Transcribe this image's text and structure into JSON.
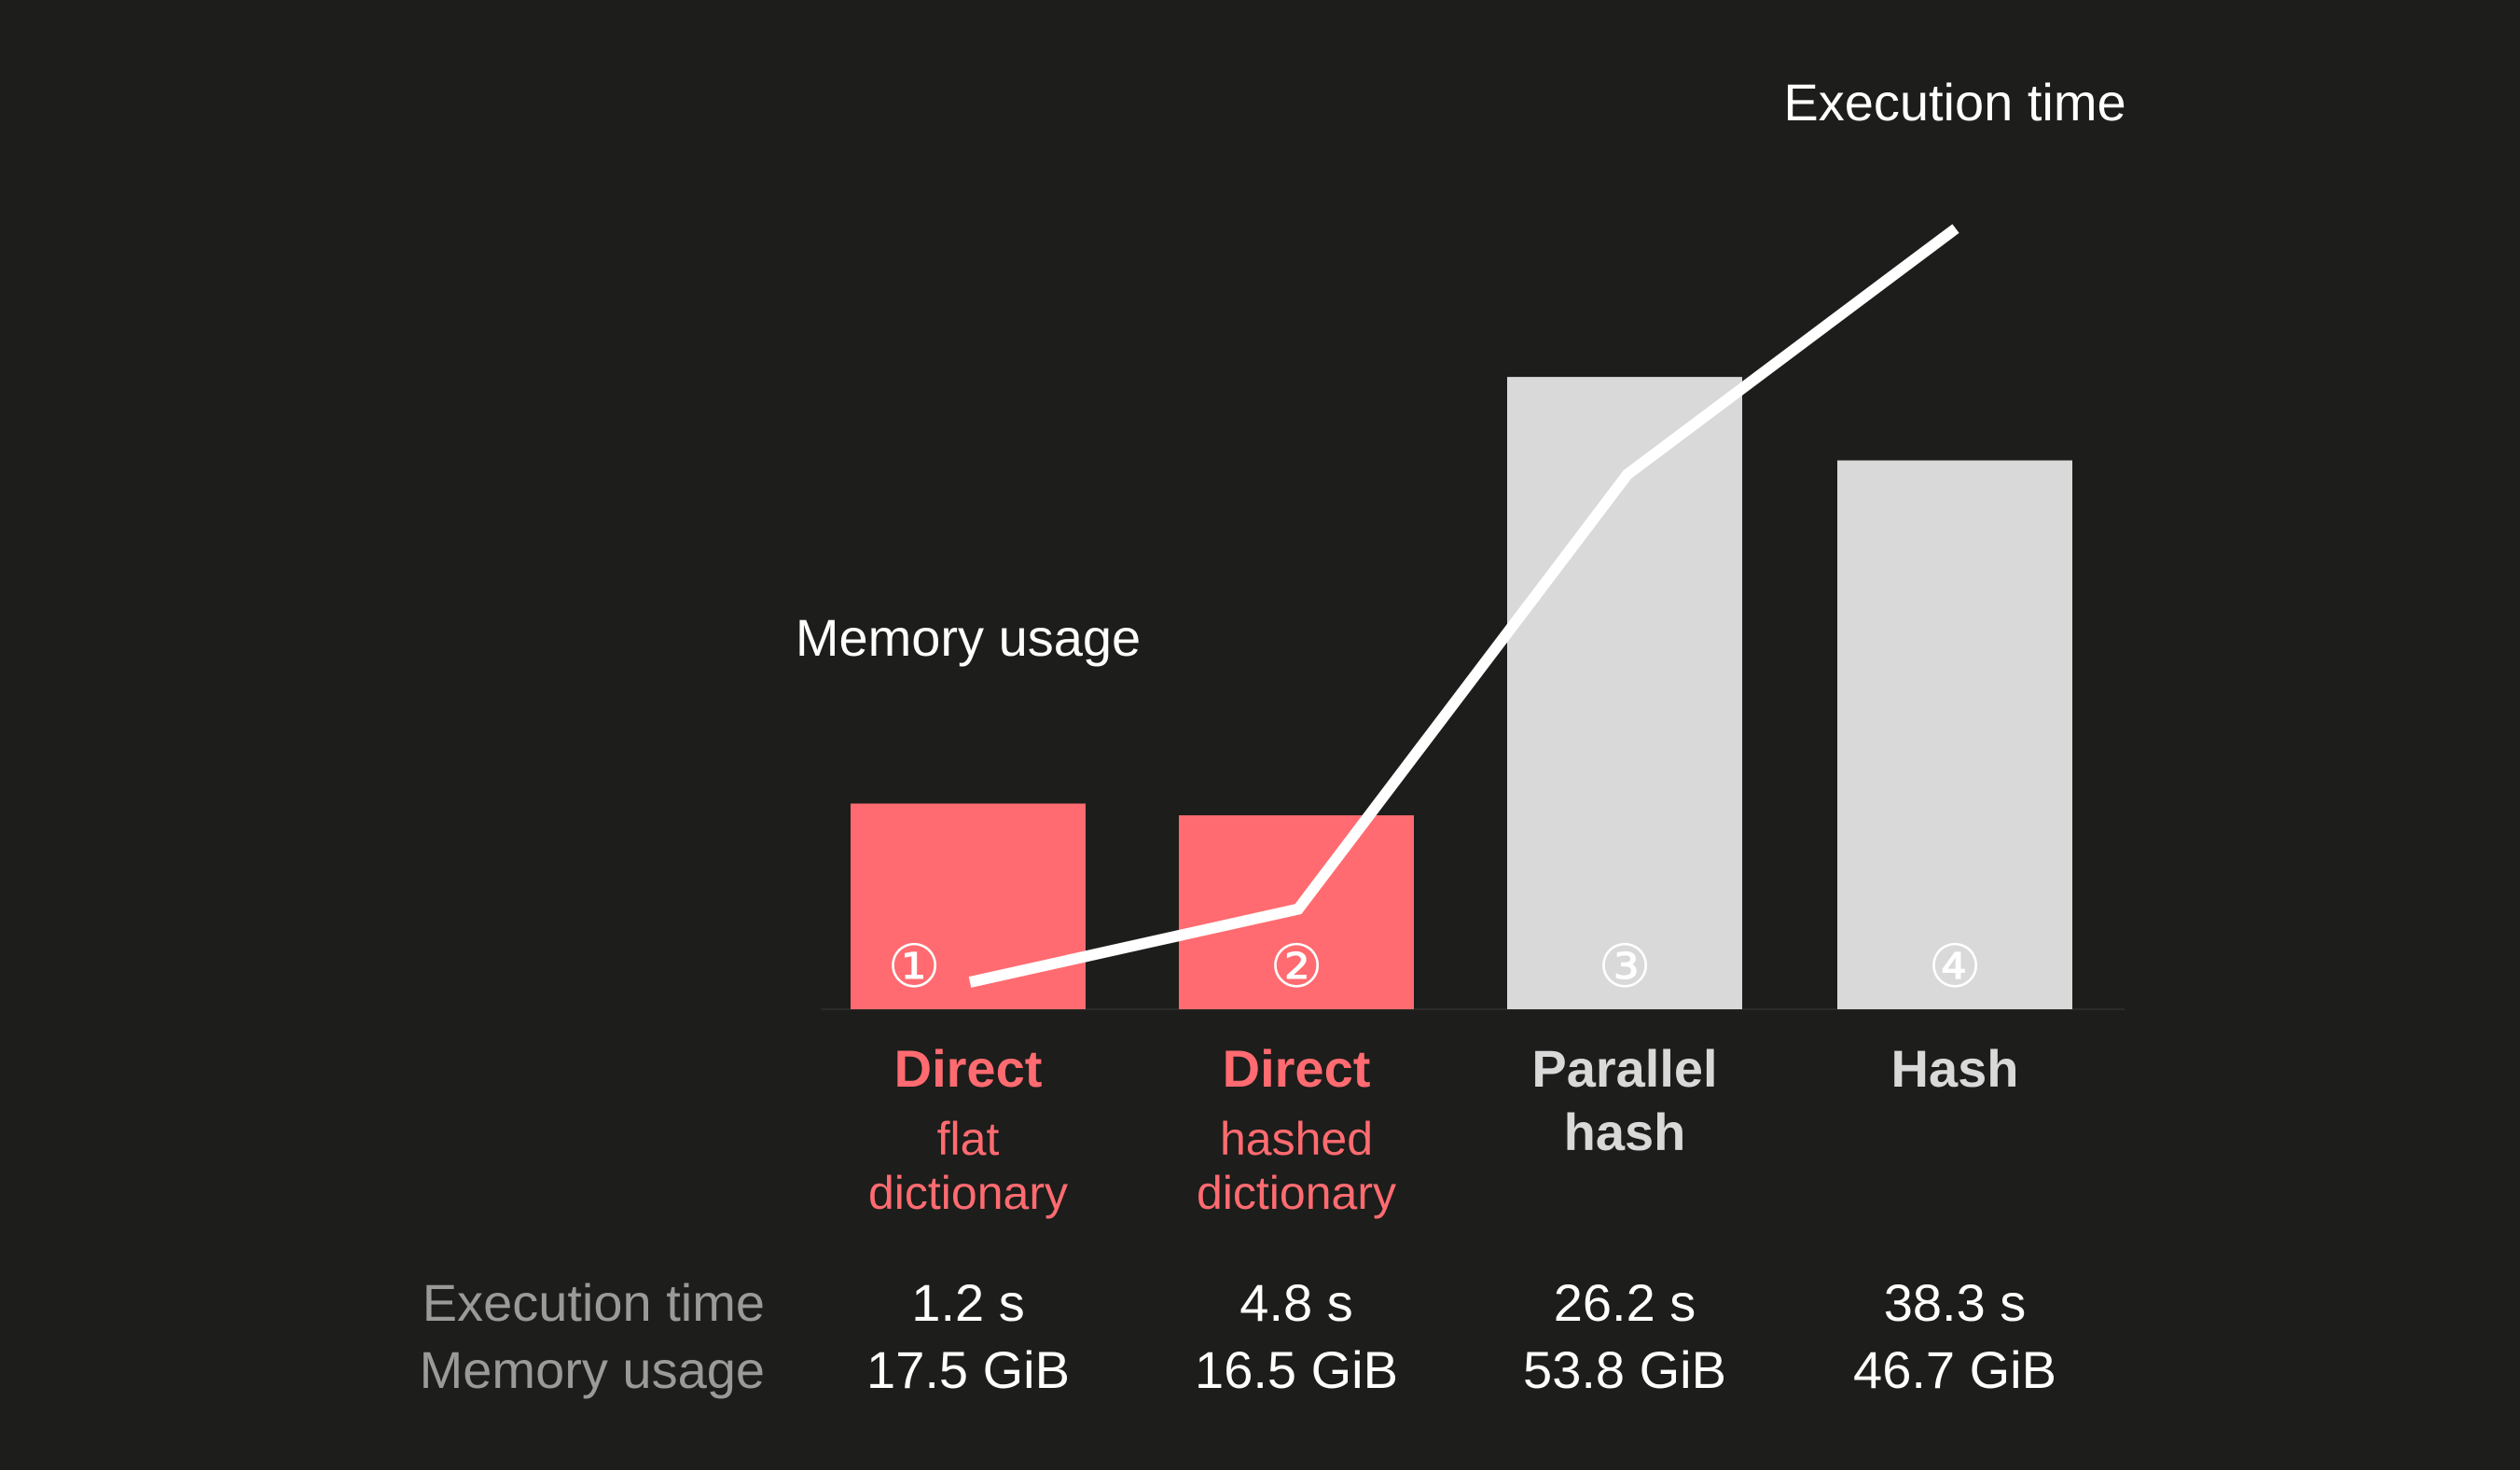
{
  "chart_data": {
    "type": "bar",
    "categories": [
      "Direct flat dictionary",
      "Direct hashed dictionary",
      "Parallel hash",
      "Hash"
    ],
    "markers": [
      "①",
      "②",
      "③",
      "④"
    ],
    "methods": [
      {
        "title": "Direct",
        "sub": "flat dictionary",
        "color": "#ff6b70"
      },
      {
        "title": "Direct",
        "sub": "hashed dictionary",
        "color": "#ff6b70"
      },
      {
        "title": "Parallel hash",
        "sub": "",
        "color": "#d9d9d9"
      },
      {
        "title": "Hash",
        "sub": "",
        "color": "#d9d9d9"
      }
    ],
    "series": [
      {
        "name": "Memory usage",
        "kind": "bar",
        "values": [
          17.5,
          16.5,
          53.8,
          46.7
        ],
        "unit": "GiB"
      },
      {
        "name": "Execution time",
        "kind": "line",
        "values": [
          1.2,
          4.8,
          26.2,
          38.3
        ],
        "unit": "s"
      }
    ],
    "annotations": {
      "bar_series": "Memory usage",
      "line_series": "Execution time"
    },
    "table": {
      "row_labels": [
        "Execution time",
        "Memory usage"
      ],
      "execution_time": [
        "1.2 s",
        "4.8 s",
        "26.2 s",
        "38.3 s"
      ],
      "memory_usage": [
        "17.5 GiB",
        "16.5 GiB",
        "53.8 GiB",
        "46.7 GiB"
      ]
    },
    "colors": {
      "background": "#1d1d1b",
      "accent": "#ff6b70",
      "neutral": "#d9d9d9",
      "line": "#ffffff",
      "row_label": "#9a9a9a"
    }
  }
}
